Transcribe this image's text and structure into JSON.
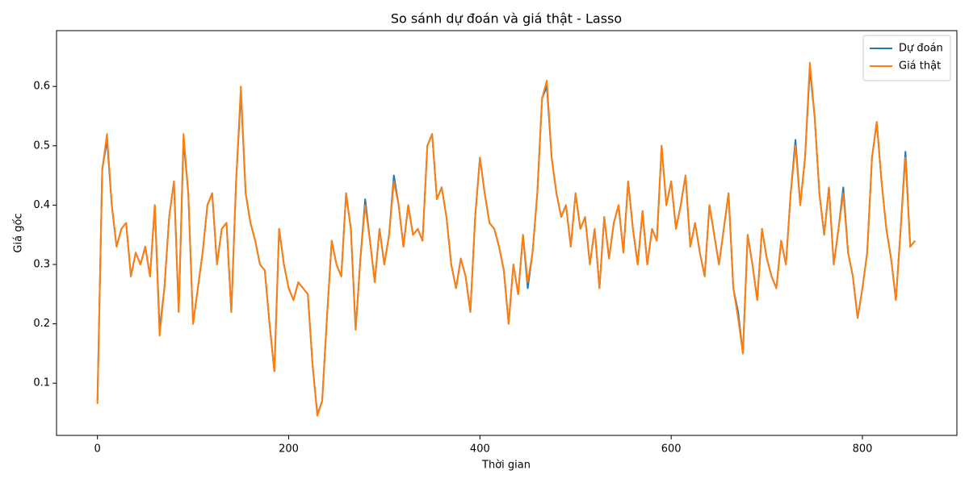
{
  "chart_data": {
    "type": "line",
    "title": "So sánh dự đoán và giá thật - Lasso",
    "xlabel": "Thời gian",
    "ylabel": "Giá gốc",
    "x": [
      0,
      5,
      10,
      15,
      20,
      25,
      30,
      35,
      40,
      45,
      50,
      55,
      60,
      65,
      70,
      75,
      80,
      85,
      90,
      95,
      100,
      105,
      110,
      115,
      120,
      125,
      130,
      135,
      140,
      145,
      150,
      155,
      160,
      165,
      170,
      175,
      180,
      185,
      190,
      195,
      200,
      205,
      210,
      215,
      220,
      225,
      230,
      235,
      240,
      245,
      250,
      255,
      260,
      265,
      270,
      275,
      280,
      285,
      290,
      295,
      300,
      305,
      310,
      315,
      320,
      325,
      330,
      335,
      340,
      345,
      350,
      355,
      360,
      365,
      370,
      375,
      380,
      385,
      390,
      395,
      400,
      405,
      410,
      415,
      420,
      425,
      430,
      435,
      440,
      445,
      450,
      455,
      460,
      465,
      470,
      475,
      480,
      485,
      490,
      495,
      500,
      505,
      510,
      515,
      520,
      525,
      530,
      535,
      540,
      545,
      550,
      555,
      560,
      565,
      570,
      575,
      580,
      585,
      590,
      595,
      600,
      605,
      610,
      615,
      620,
      625,
      630,
      635,
      640,
      645,
      650,
      655,
      660,
      665,
      670,
      675,
      680,
      685,
      690,
      695,
      700,
      705,
      710,
      715,
      720,
      725,
      730,
      735,
      740,
      745,
      750,
      755,
      760,
      765,
      770,
      775,
      780,
      785,
      790,
      795,
      800,
      805,
      810,
      815,
      820,
      825,
      830,
      835,
      840,
      845,
      850,
      855
    ],
    "series": [
      {
        "name": "Dự đoán",
        "color": "#1f77b4",
        "values": [
          0.07,
          0.46,
          0.51,
          0.4,
          0.33,
          0.36,
          0.37,
          0.28,
          0.32,
          0.3,
          0.33,
          0.28,
          0.4,
          0.19,
          0.26,
          0.38,
          0.44,
          0.22,
          0.51,
          0.42,
          0.2,
          0.26,
          0.32,
          0.4,
          0.42,
          0.3,
          0.36,
          0.37,
          0.22,
          0.44,
          0.59,
          0.42,
          0.37,
          0.34,
          0.3,
          0.29,
          0.2,
          0.12,
          0.36,
          0.3,
          0.26,
          0.24,
          0.27,
          0.26,
          0.25,
          0.13,
          0.047,
          0.07,
          0.21,
          0.34,
          0.3,
          0.28,
          0.42,
          0.36,
          0.19,
          0.31,
          0.41,
          0.34,
          0.27,
          0.36,
          0.3,
          0.35,
          0.45,
          0.4,
          0.33,
          0.4,
          0.35,
          0.36,
          0.34,
          0.5,
          0.52,
          0.41,
          0.43,
          0.38,
          0.3,
          0.26,
          0.31,
          0.28,
          0.22,
          0.38,
          0.48,
          0.42,
          0.37,
          0.36,
          0.33,
          0.29,
          0.2,
          0.3,
          0.25,
          0.35,
          0.26,
          0.32,
          0.42,
          0.58,
          0.6,
          0.48,
          0.42,
          0.38,
          0.4,
          0.33,
          0.42,
          0.36,
          0.38,
          0.3,
          0.36,
          0.26,
          0.38,
          0.31,
          0.37,
          0.4,
          0.32,
          0.44,
          0.36,
          0.3,
          0.39,
          0.3,
          0.36,
          0.34,
          0.5,
          0.4,
          0.44,
          0.36,
          0.4,
          0.45,
          0.33,
          0.37,
          0.32,
          0.28,
          0.4,
          0.35,
          0.3,
          0.36,
          0.42,
          0.26,
          0.22,
          0.15,
          0.35,
          0.3,
          0.24,
          0.36,
          0.31,
          0.28,
          0.26,
          0.34,
          0.3,
          0.42,
          0.51,
          0.4,
          0.48,
          0.63,
          0.55,
          0.42,
          0.35,
          0.43,
          0.3,
          0.36,
          0.43,
          0.32,
          0.28,
          0.21,
          0.26,
          0.32,
          0.48,
          0.54,
          0.44,
          0.36,
          0.31,
          0.24,
          0.36,
          0.49,
          0.33,
          0.34
        ]
      },
      {
        "name": "Giá thật",
        "color": "#ff7f0e",
        "values": [
          0.065,
          0.46,
          0.52,
          0.4,
          0.33,
          0.36,
          0.37,
          0.28,
          0.32,
          0.3,
          0.33,
          0.28,
          0.4,
          0.18,
          0.26,
          0.38,
          0.44,
          0.22,
          0.52,
          0.42,
          0.2,
          0.26,
          0.32,
          0.4,
          0.42,
          0.3,
          0.36,
          0.37,
          0.22,
          0.44,
          0.6,
          0.42,
          0.37,
          0.34,
          0.3,
          0.29,
          0.2,
          0.12,
          0.36,
          0.3,
          0.26,
          0.24,
          0.27,
          0.26,
          0.25,
          0.13,
          0.045,
          0.07,
          0.21,
          0.34,
          0.3,
          0.28,
          0.42,
          0.36,
          0.19,
          0.31,
          0.4,
          0.34,
          0.27,
          0.36,
          0.3,
          0.35,
          0.44,
          0.4,
          0.33,
          0.4,
          0.35,
          0.36,
          0.34,
          0.5,
          0.52,
          0.41,
          0.43,
          0.38,
          0.3,
          0.26,
          0.31,
          0.28,
          0.22,
          0.38,
          0.48,
          0.42,
          0.37,
          0.36,
          0.33,
          0.29,
          0.2,
          0.3,
          0.25,
          0.35,
          0.27,
          0.32,
          0.42,
          0.58,
          0.61,
          0.48,
          0.42,
          0.38,
          0.4,
          0.33,
          0.42,
          0.36,
          0.38,
          0.3,
          0.36,
          0.26,
          0.38,
          0.31,
          0.37,
          0.4,
          0.32,
          0.44,
          0.36,
          0.3,
          0.39,
          0.3,
          0.36,
          0.34,
          0.5,
          0.4,
          0.44,
          0.36,
          0.4,
          0.45,
          0.33,
          0.37,
          0.32,
          0.28,
          0.4,
          0.35,
          0.3,
          0.36,
          0.42,
          0.26,
          0.21,
          0.15,
          0.35,
          0.3,
          0.24,
          0.36,
          0.31,
          0.28,
          0.26,
          0.34,
          0.3,
          0.42,
          0.5,
          0.4,
          0.48,
          0.64,
          0.55,
          0.42,
          0.35,
          0.43,
          0.3,
          0.36,
          0.42,
          0.32,
          0.28,
          0.21,
          0.26,
          0.32,
          0.48,
          0.54,
          0.44,
          0.36,
          0.31,
          0.24,
          0.36,
          0.48,
          0.33,
          0.34
        ]
      }
    ],
    "xlim": [
      -42.8,
      898.8
    ],
    "ylim": [
      0.012,
      0.694
    ],
    "xticks": [
      0,
      200,
      400,
      600,
      800
    ],
    "yticks": [
      0.1,
      0.2,
      0.3,
      0.4,
      0.5,
      0.6
    ],
    "grid": false,
    "legend": "upper right"
  }
}
